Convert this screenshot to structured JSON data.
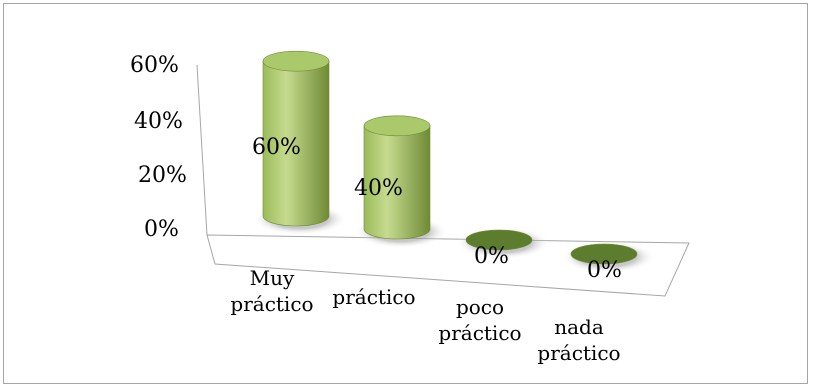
{
  "chart_data": {
    "type": "bar",
    "style": "3d-cylinder",
    "categories": [
      [
        "Muy",
        "práctico"
      ],
      [
        "práctico"
      ],
      [
        "poco",
        "práctico"
      ],
      [
        "nada",
        "práctico"
      ]
    ],
    "values": [
      60,
      40,
      0,
      0
    ],
    "data_labels": [
      "60%",
      "40%",
      "0%",
      "0%"
    ],
    "y_ticks": [
      "0%",
      "20%",
      "40%",
      "60%"
    ],
    "ylim": [
      0,
      60
    ],
    "grid": false,
    "legend": "none",
    "colors": {
      "cylinder_body": "#9bbb59",
      "cylinder_highlight": "#c6db8f",
      "cylinder_shadow": "#6f8a35",
      "cylinder_top": "#a9c96a",
      "cylinder_base": "#5d7d2e",
      "axis": "#a6a6a6"
    }
  }
}
